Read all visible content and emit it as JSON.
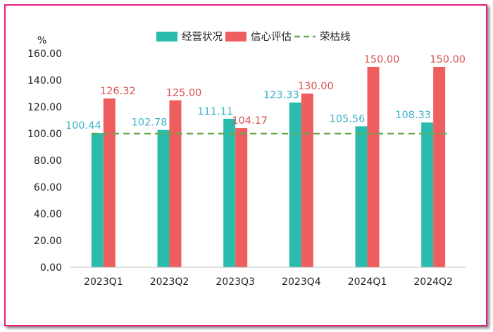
{
  "chart_data": {
    "type": "bar",
    "title": "",
    "ylabel": "%",
    "xlabel": "",
    "ylim": [
      0,
      160
    ],
    "yticks": [
      0,
      20,
      40,
      60,
      80,
      100,
      120,
      140,
      160
    ],
    "ytick_labels": [
      "0.00",
      "20.00",
      "40.00",
      "60.00",
      "80.00",
      "100.00",
      "120.00",
      "140.00",
      "160.00"
    ],
    "categories": [
      "2023Q1",
      "2023Q2",
      "2023Q3",
      "2023Q4",
      "2024Q1",
      "2024Q2"
    ],
    "series": [
      {
        "name": "经营状况",
        "values": [
          100.44,
          102.78,
          111.11,
          123.33,
          105.56,
          108.33
        ],
        "labels": [
          "100.44",
          "102.78",
          "111.11",
          "123.33",
          "105.56",
          "108.33"
        ],
        "color": "#2bbbad",
        "label_color": "#3ab5c4"
      },
      {
        "name": "信心评估",
        "values": [
          126.32,
          125.0,
          104.17,
          130.0,
          150.0,
          150.0
        ],
        "labels": [
          "126.32",
          "125.00",
          "104.17",
          "130.00",
          "150.00",
          "150.00"
        ],
        "color": "#ee5e5e",
        "label_color": "#d9534f"
      }
    ],
    "reference_line": {
      "name": "荣枯线",
      "value": 100,
      "color": "#6aa84f",
      "style": "dashed"
    },
    "legend_position": "top",
    "grid": false
  }
}
